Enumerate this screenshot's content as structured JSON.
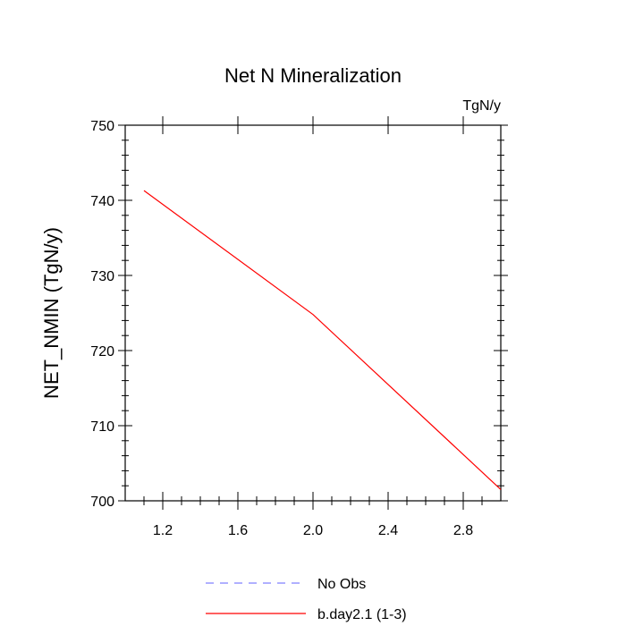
{
  "chart_data": {
    "type": "line",
    "title": "Net N Mineralization",
    "units_label": "TgN/y",
    "xlabel": "",
    "ylabel": "NET_NMIN  (TgN/y)",
    "xlim": [
      1.0,
      3.0
    ],
    "ylim": [
      700,
      750
    ],
    "x_ticks": [
      1.2,
      1.6,
      2.0,
      2.4,
      2.8
    ],
    "x_tick_labels": [
      "1.2",
      "1.6",
      "2.0",
      "2.4",
      "2.8"
    ],
    "y_ticks": [
      700,
      710,
      720,
      730,
      740,
      750
    ],
    "y_tick_labels": [
      "700",
      "710",
      "720",
      "730",
      "740",
      "750"
    ],
    "series": [
      {
        "name": "No Obs",
        "color": "#8080ff",
        "dash": true,
        "x": [],
        "y": []
      },
      {
        "name": "b.day2.1 (1-3)",
        "color": "#ff0000",
        "dash": false,
        "x": [
          1.1,
          2.0,
          3.0
        ],
        "y": [
          741.3,
          724.8,
          701.5
        ]
      }
    ],
    "legend": [
      "No Obs",
      "b.day2.1 (1-3)"
    ]
  }
}
